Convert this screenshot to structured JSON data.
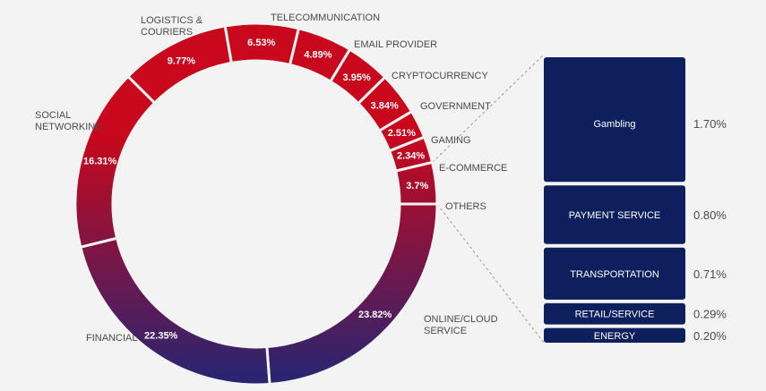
{
  "chart_data": [
    {
      "type": "pie",
      "variant": "donut",
      "categories": [
        "ONLINE/CLOUD SERVICE",
        "FINANCIAL",
        "SOCIAL NETWORKING",
        "LOGISTICS & COURIERS",
        "TELECOMMUNICATION",
        "EMAIL PROVIDER",
        "CRYPTOCURRENCY",
        "GOVERNMENT",
        "GAMING",
        "E-COMMERCE",
        "OTHERS"
      ],
      "values": [
        23.82,
        22.35,
        16.31,
        9.77,
        6.53,
        4.89,
        3.95,
        3.84,
        2.51,
        2.34,
        3.7
      ],
      "value_labels": [
        "23.82%",
        "22.35%",
        "16.31%",
        "9.77%",
        "6.53%",
        "4.89%",
        "3.95%",
        "3.84%",
        "2.51%",
        "2.34%",
        "3.7%"
      ],
      "label_lines": [
        [
          "ONLINE/CLOUD",
          "SERVICE"
        ],
        [
          "FINANCIAL"
        ],
        [
          "SOCIAL",
          "NETWORKING"
        ],
        [
          "LOGISTICS &",
          "COURIERS"
        ],
        [
          "TELECOMMUNICATION"
        ],
        [
          "EMAIL PROVIDER"
        ],
        [
          "CRYPTOCURRENCY"
        ],
        [
          "GOVERNMENT"
        ],
        [
          "GAMING"
        ],
        [
          "E-COMMERCE"
        ],
        [
          "OTHERS"
        ]
      ],
      "colors": {
        "top": "#c8081c",
        "bottom": "#2c2470"
      }
    },
    {
      "type": "bar",
      "variant": "stacked-breakdown",
      "breakdown_of": "OTHERS",
      "categories": [
        "Gambling",
        "PAYMENT SERVICE",
        "TRANSPORTATION",
        "RETAIL/SERVICE",
        "ENERGY"
      ],
      "values": [
        1.7,
        0.8,
        0.71,
        0.29,
        0.2
      ],
      "value_labels": [
        "1.70%",
        "0.80%",
        "0.71%",
        "0.29%",
        "0.20%"
      ],
      "colors": {
        "fill": "#0d1f5c"
      }
    }
  ]
}
